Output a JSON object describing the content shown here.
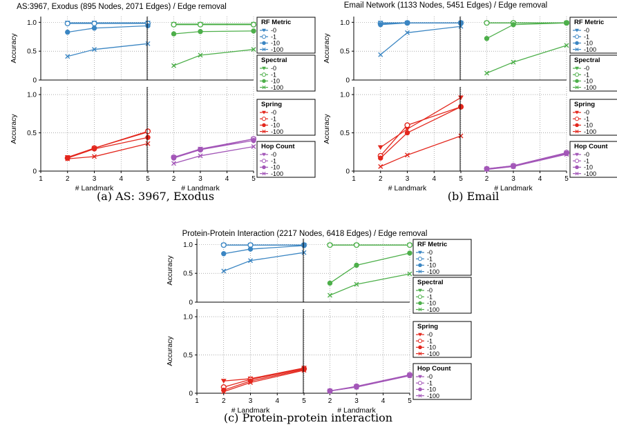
{
  "colors": {
    "rf": "#3b86c3",
    "spectral": "#4daf4a",
    "spring": "#e3271d",
    "hop": "#a357b8"
  },
  "legend": {
    "entries": [
      "-0",
      "-1",
      "-10",
      "-100"
    ],
    "groups": [
      {
        "key": "rf",
        "title": "RF Metric"
      },
      {
        "key": "spectral",
        "title": "Spectral"
      },
      {
        "key": "spring",
        "title": "Spring"
      },
      {
        "key": "hop",
        "title": "Hop Count"
      }
    ]
  },
  "chart_data": [
    {
      "type": "line",
      "title": "AS:3967, Exodus (895 Nodes, 2071 Edges) / Edge removal",
      "caption": "(a)  AS: 3967, Exodus",
      "xlabel": "# Landmark",
      "ylabel": "Accuracy",
      "x": [
        2,
        3,
        5
      ],
      "xlim": [
        1,
        5
      ],
      "ylim": [
        0,
        1.1
      ],
      "xticks": [
        "1",
        "2",
        "3",
        "4",
        "5"
      ],
      "yticks": [
        "0",
        "0.5",
        "1.0"
      ],
      "panels": [
        {
          "position": "top-left",
          "group": "rf",
          "series": [
            {
              "name": "-0",
              "values": [
                0.99,
                0.99,
                0.99
              ]
            },
            {
              "name": "-1",
              "values": [
                0.98,
                0.98,
                0.98
              ]
            },
            {
              "name": "-10",
              "values": [
                0.83,
                0.9,
                0.94
              ]
            },
            {
              "name": "-100",
              "values": [
                0.41,
                0.53,
                0.63
              ]
            }
          ]
        },
        {
          "position": "top-right",
          "group": "spectral",
          "series": [
            {
              "name": "-0",
              "values": [
                0.97,
                0.97,
                0.97
              ]
            },
            {
              "name": "-1",
              "values": [
                0.96,
                0.96,
                0.96
              ]
            },
            {
              "name": "-10",
              "values": [
                0.8,
                0.84,
                0.85
              ]
            },
            {
              "name": "-100",
              "values": [
                0.25,
                0.43,
                0.53
              ]
            }
          ]
        },
        {
          "position": "bottom-left",
          "group": "spring",
          "series": [
            {
              "name": "-0",
              "values": [
                0.18,
                0.3,
                0.51
              ]
            },
            {
              "name": "-1",
              "values": [
                0.17,
                0.3,
                0.52
              ]
            },
            {
              "name": "-10",
              "values": [
                0.17,
                0.29,
                0.44
              ]
            },
            {
              "name": "-100",
              "values": [
                0.16,
                0.19,
                0.36
              ]
            }
          ]
        },
        {
          "position": "bottom-right",
          "group": "hop",
          "series": [
            {
              "name": "-0",
              "values": [
                0.18,
                0.29,
                0.42
              ]
            },
            {
              "name": "-1",
              "values": [
                0.18,
                0.28,
                0.42
              ]
            },
            {
              "name": "-10",
              "values": [
                0.17,
                0.28,
                0.4
              ]
            },
            {
              "name": "-100",
              "values": [
                0.1,
                0.2,
                0.32
              ]
            }
          ]
        }
      ]
    },
    {
      "type": "line",
      "title": "Email Network (1133 Nodes, 5451 Edges) / Edge removal",
      "caption": "(b)  Email",
      "xlabel": "# Landmark",
      "ylabel": "Accuracy",
      "x": [
        2,
        3,
        5
      ],
      "xlim": [
        1,
        5
      ],
      "ylim": [
        0,
        1.1
      ],
      "xticks": [
        "1",
        "2",
        "3",
        "4",
        "5"
      ],
      "yticks": [
        "0",
        "0.5",
        "1.0"
      ],
      "panels": [
        {
          "position": "top-left",
          "group": "rf",
          "series": [
            {
              "name": "-0",
              "values": [
                0.99,
                0.99,
                0.99
              ]
            },
            {
              "name": "-1",
              "values": [
                0.98,
                0.99,
                0.99
              ]
            },
            {
              "name": "-10",
              "values": [
                0.96,
                0.99,
                0.99
              ]
            },
            {
              "name": "-100",
              "values": [
                0.44,
                0.82,
                0.93
              ]
            }
          ]
        },
        {
          "position": "top-right",
          "group": "spectral",
          "series": [
            {
              "name": "-0",
              "values": [
                0.99,
                0.99,
                0.99
              ]
            },
            {
              "name": "-1",
              "values": [
                0.99,
                0.99,
                0.99
              ]
            },
            {
              "name": "-10",
              "values": [
                0.72,
                0.96,
                0.99
              ]
            },
            {
              "name": "-100",
              "values": [
                0.12,
                0.31,
                0.6
              ]
            }
          ]
        },
        {
          "position": "bottom-left",
          "group": "spring",
          "series": [
            {
              "name": "-0",
              "values": [
                0.31,
                0.55,
                0.96
              ]
            },
            {
              "name": "-1",
              "values": [
                0.2,
                0.6,
                0.84
              ]
            },
            {
              "name": "-10",
              "values": [
                0.17,
                0.5,
                0.84
              ]
            },
            {
              "name": "-100",
              "values": [
                0.06,
                0.21,
                0.46
              ]
            }
          ]
        },
        {
          "position": "bottom-right",
          "group": "hop",
          "series": [
            {
              "name": "-0",
              "values": [
                0.03,
                0.07,
                0.24
              ]
            },
            {
              "name": "-1",
              "values": [
                0.03,
                0.07,
                0.24
              ]
            },
            {
              "name": "-10",
              "values": [
                0.03,
                0.06,
                0.23
              ]
            },
            {
              "name": "-100",
              "values": [
                0.02,
                0.06,
                0.22
              ]
            }
          ]
        }
      ]
    },
    {
      "type": "line",
      "title": "Protein-Protein Interaction (2217 Nodes, 6418 Edges) / Edge removal",
      "caption": "(c)  Protein-protein interaction",
      "xlabel": "# Landmark",
      "ylabel": "Accuracy",
      "x": [
        2,
        3,
        5
      ],
      "xlim": [
        1,
        5
      ],
      "ylim": [
        0,
        1.1
      ],
      "xticks": [
        "1",
        "2",
        "3",
        "4",
        "5"
      ],
      "yticks": [
        "0",
        "0.5",
        "1.0"
      ],
      "panels": [
        {
          "position": "top-left",
          "group": "rf",
          "series": [
            {
              "name": "-0",
              "values": [
                0.99,
                0.99,
                0.99
              ]
            },
            {
              "name": "-1",
              "values": [
                0.99,
                0.99,
                0.99
              ]
            },
            {
              "name": "-10",
              "values": [
                0.84,
                0.92,
                0.98
              ]
            },
            {
              "name": "-100",
              "values": [
                0.54,
                0.72,
                0.86
              ]
            }
          ]
        },
        {
          "position": "top-right",
          "group": "spectral",
          "series": [
            {
              "name": "-0",
              "values": [
                0.99,
                0.99,
                0.99
              ]
            },
            {
              "name": "-1",
              "values": [
                0.99,
                0.99,
                0.99
              ]
            },
            {
              "name": "-10",
              "values": [
                0.33,
                0.64,
                0.85
              ]
            },
            {
              "name": "-100",
              "values": [
                0.12,
                0.31,
                0.49
              ]
            }
          ]
        },
        {
          "position": "bottom-left",
          "group": "spring",
          "series": [
            {
              "name": "-0",
              "values": [
                0.16,
                0.19,
                0.33
              ]
            },
            {
              "name": "-1",
              "values": [
                0.08,
                0.18,
                0.32
              ]
            },
            {
              "name": "-10",
              "values": [
                0.04,
                0.16,
                0.31
              ]
            },
            {
              "name": "-100",
              "values": [
                0.02,
                0.14,
                0.3
              ]
            }
          ]
        },
        {
          "position": "bottom-right",
          "group": "hop",
          "series": [
            {
              "name": "-0",
              "values": [
                0.03,
                0.09,
                0.24
              ]
            },
            {
              "name": "-1",
              "values": [
                0.03,
                0.09,
                0.24
              ]
            },
            {
              "name": "-10",
              "values": [
                0.03,
                0.08,
                0.23
              ]
            },
            {
              "name": "-100",
              "values": [
                0.03,
                0.08,
                0.23
              ]
            }
          ]
        }
      ]
    }
  ]
}
